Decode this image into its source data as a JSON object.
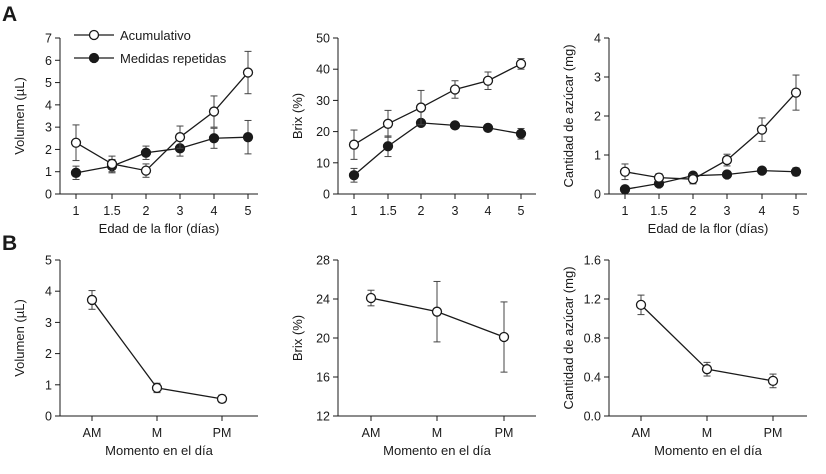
{
  "panel_labels": [
    "A",
    "B"
  ],
  "legend": [
    "Acumulativo",
    "Medidas repetidas"
  ],
  "chart_data": [
    {
      "id": "A1",
      "type": "line",
      "title": "",
      "categories": [
        "1",
        "1.5",
        "2",
        "3",
        "4",
        "5"
      ],
      "xlabel": "Edad de la flor (días)",
      "ylabel": "Volumen (µL)",
      "ylim": [
        0,
        7
      ],
      "yticks": [
        "0",
        "1",
        "2",
        "3",
        "4",
        "5",
        "6",
        "7"
      ],
      "series": [
        {
          "name": "Acumulativo",
          "marker": "open",
          "values": [
            2.3,
            1.35,
            1.05,
            2.55,
            3.7,
            5.45
          ],
          "err": [
            0.8,
            0.35,
            0.3,
            0.5,
            0.7,
            0.95
          ]
        },
        {
          "name": "Medidas repetidas",
          "marker": "filled",
          "values": [
            0.95,
            1.25,
            1.85,
            2.05,
            2.5,
            2.55
          ],
          "err": [
            0.3,
            0.3,
            0.3,
            0.35,
            0.45,
            0.75
          ]
        }
      ]
    },
    {
      "id": "A2",
      "type": "line",
      "title": "",
      "categories": [
        "1",
        "1.5",
        "2",
        "3",
        "4",
        "5"
      ],
      "xlabel": "",
      "ylabel": "Brix (%)",
      "ylim": [
        0,
        50
      ],
      "yticks": [
        "0",
        "10",
        "20",
        "30",
        "40",
        "50"
      ],
      "series": [
        {
          "name": "Acumulativo",
          "marker": "open",
          "values": [
            15.8,
            22.5,
            27.7,
            33.5,
            36.3,
            41.7
          ],
          "err": [
            4.7,
            4.3,
            5.5,
            2.8,
            2.8,
            1.7
          ]
        },
        {
          "name": "Medidas repetidas",
          "marker": "filled",
          "values": [
            6.0,
            15.3,
            22.8,
            22.0,
            21.2,
            19.3
          ],
          "err": [
            2.2,
            3.3,
            1.0,
            0.7,
            0.8,
            1.7
          ]
        }
      ]
    },
    {
      "id": "A3",
      "type": "line",
      "title": "",
      "categories": [
        "1",
        "1.5",
        "2",
        "3",
        "4",
        "5"
      ],
      "xlabel": "Edad de la flor (días)",
      "ylabel": "Cantidad de azúcar (mg)",
      "ylim": [
        0,
        4
      ],
      "yticks": [
        "0",
        "1",
        "2",
        "3",
        "4"
      ],
      "series": [
        {
          "name": "Acumulativo",
          "marker": "open",
          "values": [
            0.57,
            0.42,
            0.38,
            0.87,
            1.65,
            2.6
          ],
          "err": [
            0.2,
            0.1,
            0.12,
            0.15,
            0.3,
            0.45
          ]
        },
        {
          "name": "Medidas repetidas",
          "marker": "filled",
          "values": [
            0.12,
            0.27,
            0.47,
            0.5,
            0.6,
            0.57
          ],
          "err": [
            0.05,
            0.05,
            0.07,
            0.05,
            0.05,
            0.1
          ]
        }
      ]
    },
    {
      "id": "B1",
      "type": "line",
      "title": "",
      "categories": [
        "AM",
        "M",
        "PM"
      ],
      "xlabel": "Momento en el día",
      "ylabel": "Volumen (µL)",
      "ylim": [
        0,
        5
      ],
      "yticks": [
        "0",
        "1",
        "2",
        "3",
        "4",
        "5"
      ],
      "series": [
        {
          "name": "Acumulativo",
          "marker": "open",
          "values": [
            3.72,
            0.9,
            0.55
          ],
          "err": [
            0.3,
            0.15,
            0.12
          ]
        }
      ]
    },
    {
      "id": "B2",
      "type": "line",
      "title": "",
      "categories": [
        "AM",
        "M",
        "PM"
      ],
      "xlabel": "Momento en el día",
      "ylabel": "Brix (%)",
      "ylim": [
        12,
        28
      ],
      "yticks": [
        "12",
        "16",
        "20",
        "24",
        "28"
      ],
      "series": [
        {
          "name": "Acumulativo",
          "marker": "open",
          "values": [
            24.1,
            22.7,
            20.1
          ],
          "err": [
            0.8,
            3.1,
            3.6
          ]
        }
      ]
    },
    {
      "id": "B3",
      "type": "line",
      "title": "",
      "categories": [
        "AM",
        "M",
        "PM"
      ],
      "xlabel": "Momento en el día",
      "ylabel": "Cantidad de azúcar (mg)",
      "ylim": [
        0,
        1.6
      ],
      "yticks": [
        "0.0",
        "0.4",
        "0.8",
        "1.2",
        "1.6"
      ],
      "series": [
        {
          "name": "Acumulativo",
          "marker": "open",
          "values": [
            1.14,
            0.48,
            0.36
          ],
          "err": [
            0.1,
            0.07,
            0.07
          ]
        }
      ]
    }
  ]
}
